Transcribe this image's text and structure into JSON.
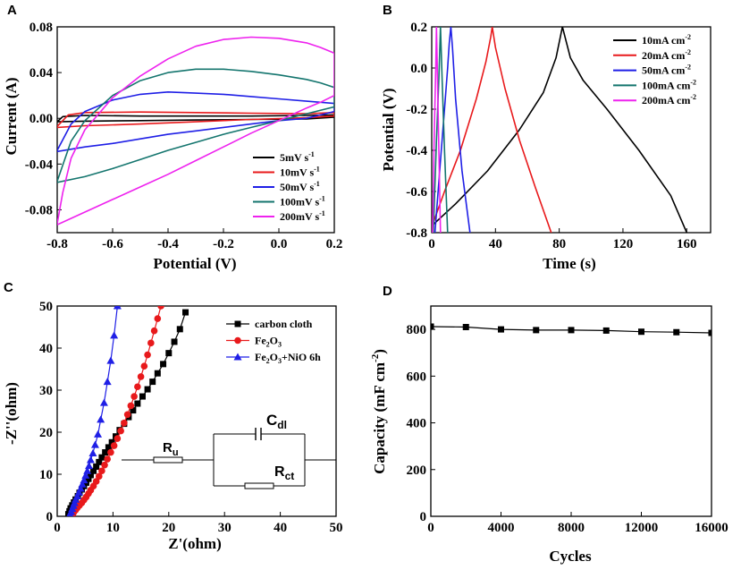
{
  "chart_data": [
    {
      "panel": "A",
      "type": "line",
      "xlabel": "Potential (V)",
      "ylabel": "Current (A)",
      "xlim": [
        -0.8,
        0.2
      ],
      "ylim": [
        -0.1,
        0.08
      ],
      "xticks": [
        "-0.8",
        "-0.6",
        "-0.4",
        "-0.2",
        "0.0",
        "0.2"
      ],
      "yticks": [
        "0.08",
        "0.04",
        "0.00",
        "-0.04",
        "-0.08"
      ],
      "xtick_values": [
        -0.8,
        -0.6,
        -0.4,
        -0.2,
        0.0,
        0.2
      ],
      "ytick_values": [
        0.08,
        0.04,
        0.0,
        -0.04,
        -0.08
      ],
      "legend": [
        {
          "label": "5mV s",
          "sup": "-1",
          "color": "#000000"
        },
        {
          "label": "10mV s",
          "sup": "-1",
          "color": "#e8191b"
        },
        {
          "label": "50mV s",
          "sup": "-1",
          "color": "#1f1fe6"
        },
        {
          "label": "100mV s",
          "sup": "-1",
          "color": "#14756e"
        },
        {
          "label": "200mV  s",
          "sup": "-1",
          "color": "#ee22ee"
        }
      ],
      "series": [
        {
          "name": "5mV s-1",
          "color": "#000000",
          "x": [
            -0.8,
            -0.78,
            -0.7,
            -0.5,
            -0.3,
            -0.1,
            0.1,
            0.2,
            0.2,
            0.1,
            -0.1,
            -0.3,
            -0.5,
            -0.7,
            -0.8
          ],
          "y": [
            -0.003,
            0.0015,
            0.0025,
            0.002,
            0.002,
            0.002,
            0.0025,
            0.003,
            0.001,
            -0.0005,
            -0.001,
            -0.0015,
            -0.002,
            -0.0025,
            -0.003
          ]
        },
        {
          "name": "10mV s-1",
          "color": "#e8191b",
          "x": [
            -0.8,
            -0.76,
            -0.7,
            -0.5,
            -0.3,
            -0.1,
            0.1,
            0.2,
            0.2,
            0.1,
            -0.1,
            -0.3,
            -0.5,
            -0.7,
            -0.8
          ],
          "y": [
            -0.007,
            0.003,
            0.005,
            0.0055,
            0.005,
            0.0045,
            0.004,
            0.005,
            0.002,
            0.0005,
            -0.001,
            -0.003,
            -0.005,
            -0.0065,
            -0.008
          ]
        },
        {
          "name": "50mV s-1",
          "color": "#1f1fe6",
          "x": [
            -0.8,
            -0.75,
            -0.7,
            -0.6,
            -0.5,
            -0.4,
            -0.3,
            -0.2,
            -0.1,
            0.0,
            0.1,
            0.15,
            0.2,
            0.2,
            0.15,
            0.1,
            0.0,
            -0.1,
            -0.2,
            -0.3,
            -0.4,
            -0.5,
            -0.6,
            -0.7,
            -0.8
          ],
          "y": [
            -0.028,
            -0.005,
            0.006,
            0.016,
            0.021,
            0.023,
            0.022,
            0.021,
            0.019,
            0.017,
            0.015,
            0.014,
            0.013,
            0.006,
            0.003,
            0.0,
            -0.002,
            -0.005,
            -0.008,
            -0.011,
            -0.014,
            -0.018,
            -0.022,
            -0.025,
            -0.029
          ]
        },
        {
          "name": "100mV s-1",
          "color": "#14756e",
          "x": [
            -0.8,
            -0.75,
            -0.7,
            -0.6,
            -0.5,
            -0.4,
            -0.3,
            -0.2,
            -0.1,
            0.0,
            0.1,
            0.15,
            0.2,
            0.2,
            0.1,
            0.0,
            -0.1,
            -0.2,
            -0.3,
            -0.4,
            -0.5,
            -0.6,
            -0.7,
            -0.8
          ],
          "y": [
            -0.055,
            -0.02,
            -0.002,
            0.02,
            0.033,
            0.04,
            0.043,
            0.043,
            0.041,
            0.038,
            0.034,
            0.031,
            0.027,
            0.01,
            0.004,
            -0.002,
            -0.008,
            -0.014,
            -0.021,
            -0.028,
            -0.036,
            -0.044,
            -0.051,
            -0.056
          ]
        },
        {
          "name": "200mV s-1",
          "color": "#ee22ee",
          "x": [
            -0.8,
            -0.78,
            -0.75,
            -0.7,
            -0.6,
            -0.5,
            -0.4,
            -0.3,
            -0.2,
            -0.1,
            0.0,
            0.1,
            0.15,
            0.2,
            0.2,
            0.15,
            0.1,
            0.0,
            -0.1,
            -0.2,
            -0.3,
            -0.4,
            -0.5,
            -0.6,
            -0.7,
            -0.8
          ],
          "y": [
            -0.092,
            -0.065,
            -0.035,
            -0.01,
            0.018,
            0.037,
            0.052,
            0.063,
            0.069,
            0.071,
            0.07,
            0.066,
            0.062,
            0.057,
            0.02,
            0.014,
            0.009,
            -0.002,
            -0.013,
            -0.025,
            -0.037,
            -0.049,
            -0.06,
            -0.071,
            -0.082,
            -0.093
          ]
        }
      ]
    },
    {
      "panel": "B",
      "type": "line",
      "xlabel": "Time (s)",
      "ylabel": "Potential (V)",
      "xlim": [
        0,
        175
      ],
      "ylim": [
        -0.8,
        0.2
      ],
      "xticks": [
        "0",
        "40",
        "80",
        "120",
        "160"
      ],
      "yticks": [
        "0.2",
        "0.0",
        "-0.2",
        "-0.4",
        "-0.6",
        "-0.8"
      ],
      "xtick_values": [
        0,
        40,
        80,
        120,
        160
      ],
      "ytick_values": [
        0.2,
        0.0,
        -0.2,
        -0.4,
        -0.6,
        -0.8
      ],
      "legend": [
        {
          "label": "10mA cm",
          "sup": "-2",
          "color": "#000000"
        },
        {
          "label": "20mA cm",
          "sup": "-2",
          "color": "#e8191b"
        },
        {
          "label": "50mA cm",
          "sup": "-2",
          "color": "#1f1fe6"
        },
        {
          "label": "100mA cm",
          "sup": "-2",
          "color": "#14756e"
        },
        {
          "label": "200mA cm",
          "sup": "-2",
          "color": "#ee22ee"
        }
      ],
      "series": [
        {
          "name": "10mA cm-2",
          "color": "#000000",
          "x": [
            1,
            15,
            35,
            55,
            70,
            78,
            82,
            87,
            95,
            110,
            130,
            150,
            160
          ],
          "y": [
            -0.76,
            -0.66,
            -0.5,
            -0.3,
            -0.12,
            0.05,
            0.2,
            0.05,
            -0.06,
            -0.2,
            -0.4,
            -0.62,
            -0.8
          ]
        },
        {
          "name": "20mA cm-2",
          "color": "#e8191b",
          "x": [
            1,
            8,
            18,
            28,
            34,
            37,
            38,
            40,
            46,
            55,
            65,
            75
          ],
          "y": [
            -0.75,
            -0.6,
            -0.4,
            -0.15,
            0.03,
            0.15,
            0.2,
            0.1,
            -0.1,
            -0.35,
            -0.58,
            -0.8
          ]
        },
        {
          "name": "50mA cm-2",
          "color": "#1f1fe6",
          "x": [
            2,
            5,
            8,
            10,
            11,
            12,
            13,
            15,
            19,
            24
          ],
          "y": [
            -0.8,
            -0.5,
            -0.2,
            0.0,
            0.12,
            0.2,
            0.1,
            -0.15,
            -0.5,
            -0.8
          ]
        },
        {
          "name": "100mA cm-2",
          "color": "#14756e",
          "x": [
            1,
            3,
            4.5,
            5.5,
            6.5,
            8,
            10
          ],
          "y": [
            -0.8,
            -0.35,
            -0.05,
            0.2,
            -0.05,
            -0.4,
            -0.8
          ]
        },
        {
          "name": "200mA cm-2",
          "color": "#ee22ee",
          "x": [
            0.5,
            1.5,
            2.5,
            3,
            3.5,
            4.5,
            5.5
          ],
          "y": [
            -0.8,
            -0.35,
            0.0,
            0.2,
            0.0,
            -0.4,
            -0.8
          ]
        }
      ]
    },
    {
      "panel": "C",
      "type": "scatter",
      "xlabel": "Z'(ohm)",
      "ylabel": "-Z''(ohm)",
      "xlim": [
        0,
        50
      ],
      "ylim": [
        0,
        50
      ],
      "xticks": [
        "0",
        "10",
        "20",
        "30",
        "40",
        "50"
      ],
      "yticks": [
        "50",
        "40",
        "30",
        "20",
        "10",
        "0"
      ],
      "xtick_values": [
        0,
        10,
        20,
        30,
        40,
        50
      ],
      "ytick_values": [
        50,
        40,
        30,
        20,
        10,
        0
      ],
      "legend": [
        {
          "label": "carbon cloth",
          "color": "#000000",
          "marker": "square"
        },
        {
          "label": "Fe",
          "sub1": "2",
          "mid": "O",
          "sub2": "3",
          "tail": "",
          "color": "#e8191b",
          "marker": "circle"
        },
        {
          "label": "Fe",
          "sub1": "2",
          "mid": "O",
          "sub2": "3",
          "tail": "+NiO 6h",
          "color": "#1f1fe6",
          "marker": "triangle"
        }
      ],
      "circuit": {
        "ru": "R",
        "ru_sub": "u",
        "cdl": "C",
        "cdl_sub": "dl",
        "rct": "R",
        "rct_sub": "ct"
      },
      "series": [
        {
          "name": "carbon cloth",
          "color": "#000000",
          "marker": "square",
          "x": [
            2.0,
            2.2,
            2.4,
            2.7,
            3.0,
            3.3,
            3.7,
            4.0,
            4.4,
            4.8,
            5.2,
            5.6,
            6.0,
            6.5,
            7.0,
            7.5,
            8.0,
            8.6,
            9.2,
            9.8,
            10.5,
            11.2,
            12.0,
            12.8,
            13.6,
            14.4,
            15.3,
            16.2,
            17.1,
            18.0,
            19.0,
            20.0,
            21.0,
            22.0,
            23.0
          ],
          "y": [
            0.5,
            1.2,
            1.9,
            2.6,
            3.3,
            4.0,
            4.8,
            5.6,
            6.4,
            7.2,
            8.0,
            8.9,
            9.8,
            10.8,
            11.8,
            12.9,
            14.0,
            15.2,
            16.4,
            17.6,
            19.0,
            20.5,
            22.0,
            23.6,
            25.2,
            26.8,
            28.5,
            30.2,
            32.0,
            34.0,
            36.2,
            38.8,
            41.5,
            44.5,
            48.5
          ]
        },
        {
          "name": "Fe2O3",
          "color": "#e8191b",
          "marker": "circle",
          "x": [
            2.8,
            3.0,
            3.3,
            3.6,
            4.0,
            4.4,
            4.8,
            5.2,
            5.6,
            6.0,
            6.5,
            7.0,
            7.5,
            8.0,
            8.5,
            9.0,
            9.6,
            10.2,
            10.8,
            11.4,
            12.0,
            12.6,
            13.2,
            13.8,
            14.4,
            15.0,
            15.6,
            16.2,
            16.8,
            17.4,
            18.0,
            18.6
          ],
          "y": [
            0.5,
            1.0,
            1.5,
            2.0,
            2.6,
            3.2,
            3.9,
            4.6,
            5.4,
            6.2,
            7.2,
            8.3,
            9.5,
            10.8,
            12.2,
            13.6,
            15.2,
            16.8,
            18.5,
            20.3,
            22.2,
            24.2,
            26.3,
            28.5,
            30.8,
            33.2,
            35.7,
            38.4,
            41.2,
            44.1,
            47.0,
            50.0
          ]
        },
        {
          "name": "Fe2O3+NiO 6h",
          "color": "#1f1fe6",
          "marker": "triangle",
          "x": [
            2.3,
            2.5,
            2.7,
            2.9,
            3.1,
            3.3,
            3.6,
            3.9,
            4.2,
            4.5,
            4.8,
            5.1,
            5.4,
            5.7,
            6.0,
            6.4,
            6.8,
            7.3,
            7.8,
            8.4,
            9.0,
            9.6,
            10.2,
            10.8
          ],
          "y": [
            0.5,
            1.1,
            1.8,
            2.5,
            3.2,
            4.0,
            4.8,
            5.7,
            6.6,
            7.6,
            8.6,
            9.7,
            10.8,
            12.0,
            13.4,
            15.0,
            17.0,
            19.5,
            23.0,
            27.0,
            32.0,
            37.0,
            43.0,
            50.0
          ]
        }
      ]
    },
    {
      "panel": "D",
      "type": "line",
      "xlabel": "Cycles",
      "ylabel": "Capacity (mF cm",
      "ylabel_sup": "-2",
      "ylabel_tail": ")",
      "xlim": [
        0,
        16000
      ],
      "ylim": [
        0,
        900
      ],
      "xticks": [
        "0",
        "4000",
        "8000",
        "12000",
        "16000"
      ],
      "yticks": [
        "800",
        "600",
        "400",
        "200",
        "0"
      ],
      "xtick_values": [
        0,
        4000,
        8000,
        12000,
        16000
      ],
      "ytick_values": [
        800,
        600,
        400,
        200,
        0
      ],
      "series": [
        {
          "name": "capacity",
          "color": "#000000",
          "marker": "square",
          "x": [
            0,
            2000,
            4000,
            6000,
            8000,
            10000,
            12000,
            14000,
            16000
          ],
          "y": [
            812,
            810,
            800,
            797,
            797,
            795,
            790,
            788,
            785
          ]
        }
      ]
    }
  ],
  "panels": [
    "A",
    "B",
    "C",
    "D"
  ]
}
